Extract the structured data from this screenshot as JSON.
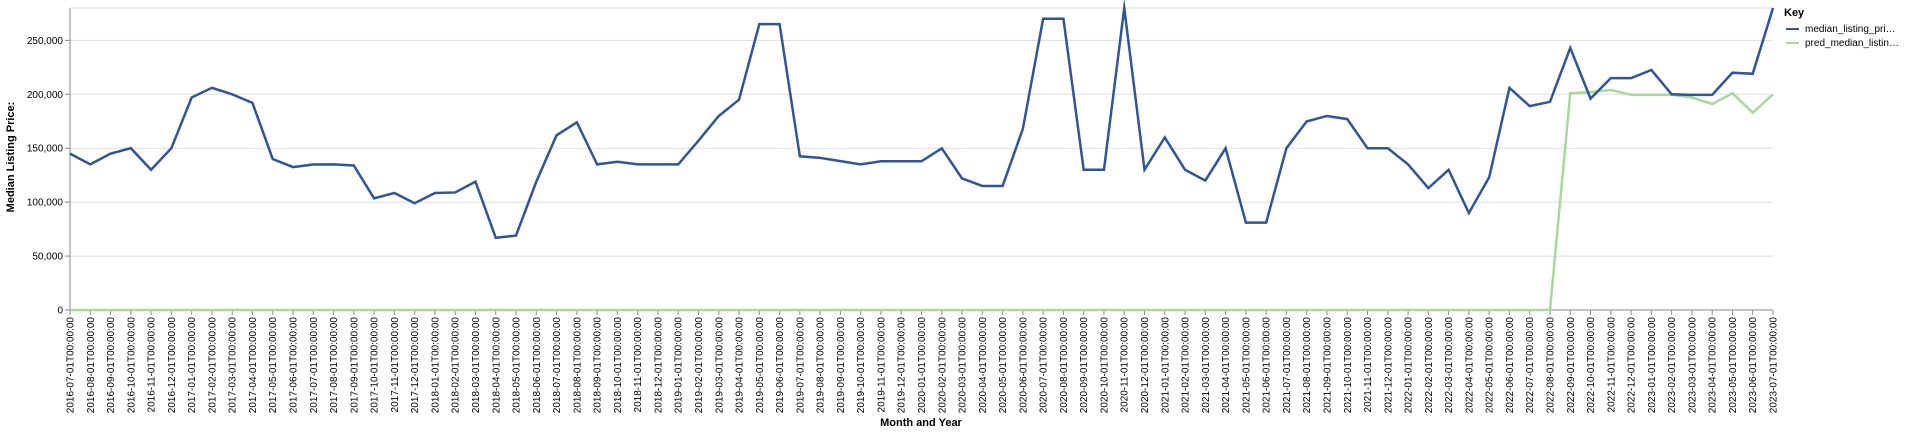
{
  "chart_data": {
    "type": "line",
    "xlabel": "Month and Year",
    "ylabel": "Median Listing Price:",
    "ylim": [
      0,
      280000
    ],
    "yticks": [
      0,
      50000,
      100000,
      150000,
      200000,
      250000
    ],
    "ytick_labels": [
      "0",
      "50,000",
      "100,000",
      "150,000",
      "200,000",
      "250,000"
    ],
    "grid": true,
    "legend": {
      "title": "Key",
      "placement": "top-right",
      "labels": [
        "median_listing_pri…",
        "pred_median_listin…"
      ]
    },
    "x": [
      "2016-07-01T00:00:00",
      "2016-08-01T00:00:00",
      "2016-09-01T00:00:00",
      "2016-10-01T00:00:00",
      "2016-11-01T00:00:00",
      "2016-12-01T00:00:00",
      "2017-01-01T00:00:00",
      "2017-02-01T00:00:00",
      "2017-03-01T00:00:00",
      "2017-04-01T00:00:00",
      "2017-05-01T00:00:00",
      "2017-06-01T00:00:00",
      "2017-07-01T00:00:00",
      "2017-08-01T00:00:00",
      "2017-09-01T00:00:00",
      "2017-10-01T00:00:00",
      "2017-11-01T00:00:00",
      "2017-12-01T00:00:00",
      "2018-01-01T00:00:00",
      "2018-02-01T00:00:00",
      "2018-03-01T00:00:00",
      "2018-04-01T00:00:00",
      "2018-05-01T00:00:00",
      "2018-06-01T00:00:00",
      "2018-07-01T00:00:00",
      "2018-08-01T00:00:00",
      "2018-09-01T00:00:00",
      "2018-10-01T00:00:00",
      "2018-11-01T00:00:00",
      "2018-12-01T00:00:00",
      "2019-01-01T00:00:00",
      "2019-02-01T00:00:00",
      "2019-03-01T00:00:00",
      "2019-04-01T00:00:00",
      "2019-05-01T00:00:00",
      "2019-06-01T00:00:00",
      "2019-07-01T00:00:00",
      "2019-08-01T00:00:00",
      "2019-09-01T00:00:00",
      "2019-10-01T00:00:00",
      "2019-11-01T00:00:00",
      "2019-12-01T00:00:00",
      "2020-01-01T00:00:00",
      "2020-02-01T00:00:00",
      "2020-03-01T00:00:00",
      "2020-04-01T00:00:00",
      "2020-05-01T00:00:00",
      "2020-06-01T00:00:00",
      "2020-07-01T00:00:00",
      "2020-08-01T00:00:00",
      "2020-09-01T00:00:00",
      "2020-10-01T00:00:00",
      "2020-11-01T00:00:00",
      "2020-12-01T00:00:00",
      "2021-01-01T00:00:00",
      "2021-02-01T00:00:00",
      "2021-03-01T00:00:00",
      "2021-04-01T00:00:00",
      "2021-05-01T00:00:00",
      "2021-06-01T00:00:00",
      "2021-07-01T00:00:00",
      "2021-08-01T00:00:00",
      "2021-09-01T00:00:00",
      "2021-10-01T00:00:00",
      "2021-11-01T00:00:00",
      "2021-12-01T00:00:00",
      "2022-01-01T00:00:00",
      "2022-02-01T00:00:00",
      "2022-03-01T00:00:00",
      "2022-04-01T00:00:00",
      "2022-05-01T00:00:00",
      "2022-06-01T00:00:00",
      "2022-07-01T00:00:00",
      "2022-08-01T00:00:00",
      "2022-09-01T00:00:00",
      "2022-10-01T00:00:00",
      "2022-11-01T00:00:00",
      "2022-12-01T00:00:00",
      "2023-01-01T00:00:00",
      "2023-02-01T00:00:00",
      "2023-03-01T00:00:00",
      "2023-04-01T00:00:00",
      "2023-05-01T00:00:00",
      "2023-06-01T00:00:00",
      "2023-07-01T00:00:00"
    ],
    "series": [
      {
        "name": "median_listing_pri…",
        "color": "#2f5597",
        "values": [
          145000,
          135000,
          145000,
          150000,
          130000,
          150000,
          197000,
          206000,
          200000,
          192000,
          140000,
          132500,
          134900,
          135000,
          134000,
          103500,
          108500,
          99000,
          108500,
          109000,
          119000,
          67000,
          69000,
          119000,
          162000,
          174000,
          135000,
          137500,
          135000,
          135000,
          135000,
          157000,
          179900,
          195000,
          265000,
          265000,
          142500,
          141000,
          138000,
          135000,
          137900,
          137900,
          137900,
          149900,
          122000,
          115000,
          115000,
          168000,
          270000,
          270000,
          130000,
          130000,
          280000,
          130000,
          160000,
          130000,
          120000,
          150000,
          81000,
          81000,
          150000,
          174900,
          179900,
          177000,
          150000,
          150000,
          135000,
          113000,
          130000,
          89900,
          123000,
          206000,
          189000,
          193000,
          243000,
          196000,
          215000,
          215000,
          222500,
          200000,
          199500,
          199500,
          220000,
          219000,
          280000
        ]
      },
      {
        "name": "pred_median_listin…",
        "color": "#a6d99a",
        "values": [
          0,
          0,
          0,
          0,
          0,
          0,
          0,
          0,
          0,
          0,
          0,
          0,
          0,
          0,
          0,
          0,
          0,
          0,
          0,
          0,
          0,
          0,
          0,
          0,
          0,
          0,
          0,
          0,
          0,
          0,
          0,
          0,
          0,
          0,
          0,
          0,
          0,
          0,
          0,
          0,
          0,
          0,
          0,
          0,
          0,
          0,
          0,
          0,
          0,
          0,
          0,
          0,
          0,
          0,
          0,
          0,
          0,
          0,
          0,
          0,
          0,
          0,
          0,
          0,
          0,
          0,
          0,
          0,
          0,
          0,
          0,
          0,
          0,
          0,
          201000,
          202000,
          204000,
          199500,
          199500,
          199500,
          197000,
          191000,
          201000,
          183000,
          200000
        ]
      }
    ]
  },
  "colors": {
    "grid": "#dddddd",
    "axis": "#888888"
  }
}
